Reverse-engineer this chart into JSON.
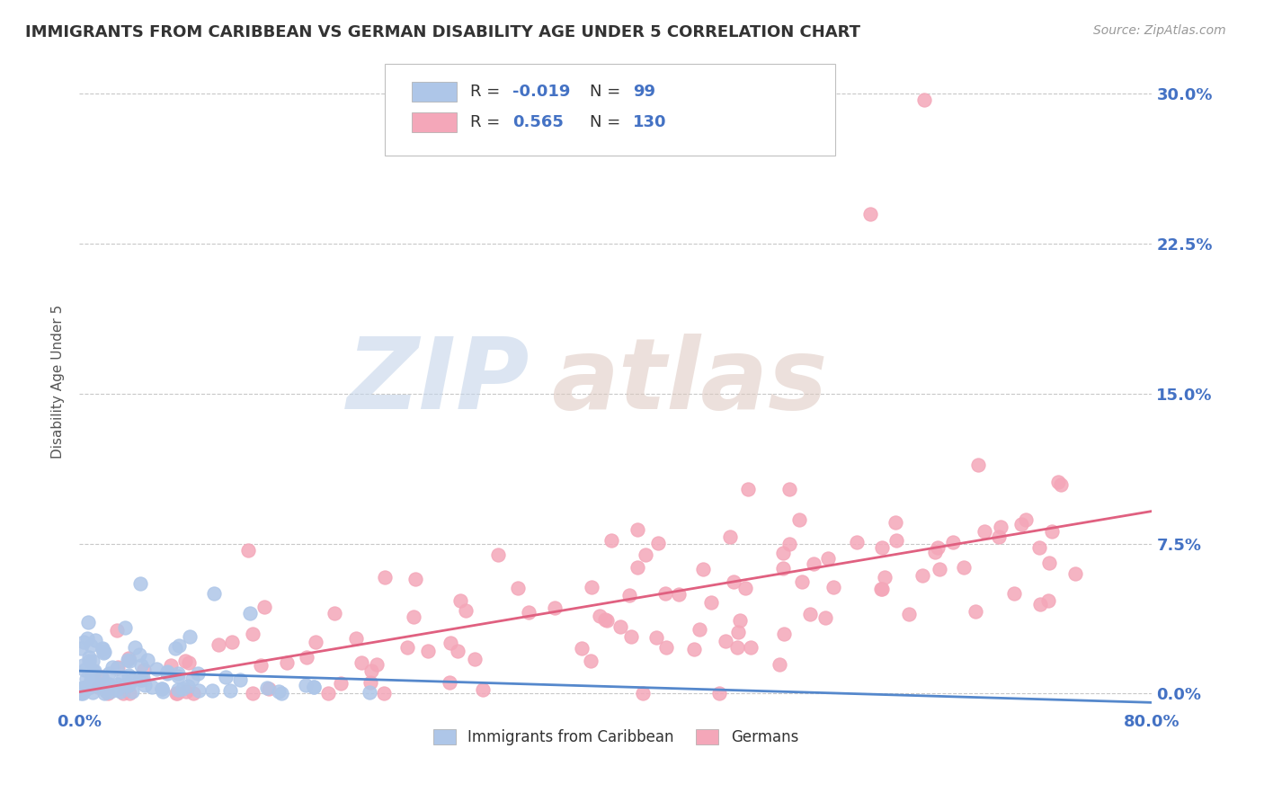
{
  "title": "IMMIGRANTS FROM CARIBBEAN VS GERMAN DISABILITY AGE UNDER 5 CORRELATION CHART",
  "source": "Source: ZipAtlas.com",
  "ylabel": "Disability Age Under 5",
  "xlim": [
    0.0,
    0.8
  ],
  "ylim": [
    -0.008,
    0.32
  ],
  "yticks": [
    0.0,
    0.075,
    0.15,
    0.225,
    0.3
  ],
  "ytick_labels": [
    "0.0%",
    "7.5%",
    "15.0%",
    "22.5%",
    "30.0%"
  ],
  "xticks": [
    0.0,
    0.8
  ],
  "xtick_labels": [
    "0.0%",
    "80.0%"
  ],
  "legend_entry1": {
    "label": "Immigrants from Caribbean",
    "color": "#aec6e8",
    "R": "-0.019",
    "N": "99"
  },
  "legend_entry2": {
    "label": "Germans",
    "color": "#f4a7b9",
    "R": "0.565",
    "N": "130"
  },
  "background_color": "#ffffff",
  "grid_color": "#cccccc",
  "tick_label_color": "#4472c4",
  "title_color": "#333333",
  "scatter_color_blue": "#aec6e8",
  "scatter_color_pink": "#f4a7b9",
  "line_color_blue": "#5588cc",
  "line_color_pink": "#e06080",
  "watermark_zip_color": "#ccd8ee",
  "watermark_atlas_color": "#d8ccc8",
  "seed": 42,
  "n_blue": 99,
  "n_pink": 130,
  "R_blue": -0.019,
  "R_pink": 0.565
}
